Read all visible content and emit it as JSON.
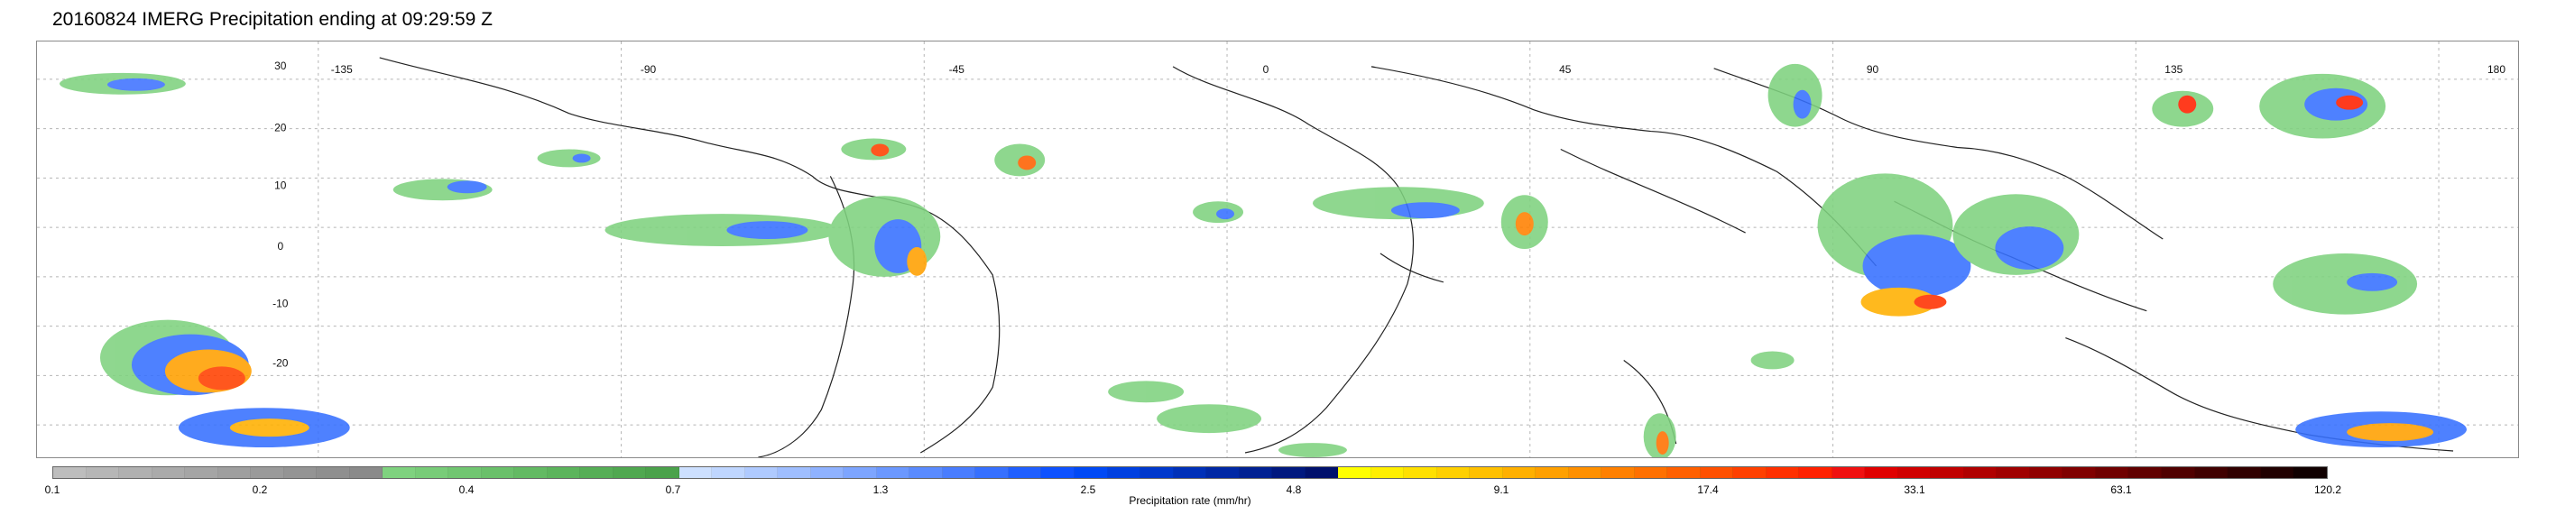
{
  "page": {
    "title": "20160824 IMERG Precipitation ending at 09:29:59 Z"
  },
  "map": {
    "lon_labels": [
      "-135",
      "-90",
      "-45",
      "0",
      "45",
      "90",
      "135",
      "180"
    ],
    "lat_labels": [
      "30",
      "20",
      "10",
      "0",
      "-10",
      "-20"
    ],
    "grid_color": "#b5b5b5",
    "coast_color": "#222222"
  },
  "colorbar": {
    "title": "Precipitation rate (mm/hr)",
    "labels": [
      "0.1",
      "0.2",
      "0.4",
      "0.7",
      "1.3",
      "2.5",
      "4.8",
      "9.1",
      "17.4",
      "33.1",
      "63.1",
      "120.2"
    ],
    "colors": [
      "#bdbdbd",
      "#b6b6b6",
      "#b0b0b0",
      "#aaaaaa",
      "#a5a5a5",
      "#9f9f9f",
      "#9a9a9a",
      "#949494",
      "#8f8f8f",
      "#8a8a8a",
      "#7fd27f",
      "#78cc78",
      "#71c671",
      "#6ac06a",
      "#63ba63",
      "#5cb45c",
      "#56ae56",
      "#50a850",
      "#4ba24b",
      "#cde0ff",
      "#bfd6ff",
      "#afcaff",
      "#9fbeff",
      "#8fb2ff",
      "#7da5ff",
      "#6b98ff",
      "#5a8bff",
      "#497dff",
      "#3670ff",
      "#1f5fff",
      "#0e52ff",
      "#0049f5",
      "#0040e0",
      "#0038cc",
      "#0030b8",
      "#0028a5",
      "#002092",
      "#00187f",
      "#00106c",
      "#ffff00",
      "#ffef00",
      "#ffe000",
      "#ffd000",
      "#ffc000",
      "#ffb000",
      "#ffa000",
      "#ff9000",
      "#ff8000",
      "#ff7000",
      "#ff6000",
      "#ff5000",
      "#ff4000",
      "#ff3000",
      "#ff2000",
      "#f01010",
      "#e00000",
      "#d00000",
      "#c00000",
      "#b00000",
      "#a00000",
      "#900000",
      "#800000",
      "#700000",
      "#600000",
      "#500000",
      "#400000",
      "#300000",
      "#200000",
      "#100000"
    ]
  },
  "icons": {
    "map": "world-map-icon"
  }
}
